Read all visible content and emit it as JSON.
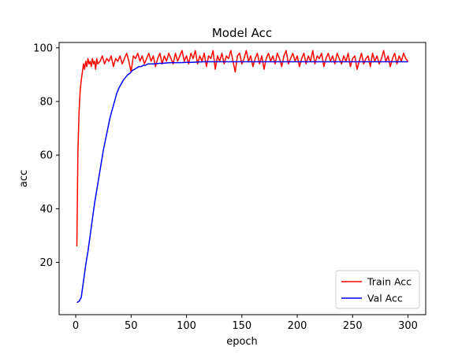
{
  "chart_data": {
    "type": "line",
    "title": "Model Acc",
    "xlabel": "epoch",
    "ylabel": "acc",
    "xlim": [
      -15,
      316
    ],
    "ylim": [
      0.5,
      102
    ],
    "xticks": [
      0,
      50,
      100,
      150,
      200,
      250,
      300
    ],
    "yticks": [
      20,
      40,
      60,
      80,
      100
    ],
    "grid": false,
    "legend_position": "lower-right",
    "series": [
      {
        "name": "Train Acc",
        "color": "#ff0000",
        "x": [
          1,
          2,
          3,
          4,
          5,
          6,
          7,
          8,
          9,
          10,
          11,
          12,
          13,
          14,
          15,
          16,
          17,
          18,
          19,
          20,
          22,
          24,
          26,
          28,
          30,
          32,
          34,
          36,
          38,
          40,
          42,
          44,
          46,
          48,
          50,
          52,
          54,
          56,
          58,
          60,
          62,
          64,
          66,
          68,
          70,
          72,
          74,
          76,
          78,
          80,
          82,
          84,
          86,
          88,
          90,
          92,
          94,
          96,
          98,
          100,
          102,
          104,
          106,
          108,
          110,
          112,
          114,
          116,
          118,
          120,
          122,
          124,
          126,
          128,
          130,
          132,
          134,
          136,
          138,
          140,
          142,
          144,
          146,
          148,
          150,
          152,
          154,
          156,
          158,
          160,
          162,
          164,
          166,
          168,
          170,
          172,
          174,
          176,
          178,
          180,
          182,
          184,
          186,
          188,
          190,
          192,
          194,
          196,
          198,
          200,
          202,
          204,
          206,
          208,
          210,
          212,
          214,
          216,
          218,
          220,
          222,
          224,
          226,
          228,
          230,
          232,
          234,
          236,
          238,
          240,
          242,
          244,
          246,
          248,
          250,
          252,
          254,
          256,
          258,
          260,
          262,
          264,
          266,
          268,
          270,
          272,
          274,
          276,
          278,
          280,
          282,
          284,
          286,
          288,
          290,
          292,
          294,
          296,
          298,
          300
        ],
        "y": [
          26,
          62,
          76,
          84,
          88,
          91,
          94,
          92,
          95,
          93,
          96,
          94,
          95,
          93,
          96,
          94,
          95,
          92,
          96,
          94,
          95,
          97,
          94,
          96,
          95,
          97,
          93,
          96,
          95,
          97,
          94,
          96,
          98,
          95,
          91,
          97,
          96,
          98,
          95,
          97,
          94,
          96,
          98,
          95,
          97,
          93,
          96,
          98,
          94,
          97,
          95,
          98,
          96,
          94,
          98,
          95,
          97,
          99,
          95,
          97,
          94,
          98,
          96,
          99,
          94,
          97,
          95,
          98,
          93,
          97,
          96,
          99,
          92,
          97,
          95,
          98,
          94,
          97,
          96,
          99,
          95,
          91,
          97,
          98,
          94,
          96,
          99,
          95,
          97,
          93,
          96,
          98,
          94,
          97,
          92,
          96,
          98,
          95,
          97,
          94,
          98,
          96,
          93,
          97,
          99,
          94,
          96,
          98,
          95,
          97,
          93,
          96,
          98,
          94,
          97,
          95,
          99,
          94,
          97,
          96,
          98,
          93,
          96,
          98,
          95,
          97,
          94,
          98,
          96,
          94,
          97,
          95,
          98,
          93,
          96,
          97,
          92,
          95,
          98,
          94,
          96,
          97,
          93,
          98,
          95,
          97,
          94,
          96,
          99,
          95,
          97,
          93,
          96,
          98,
          94,
          97,
          95,
          98,
          96,
          95
        ]
      },
      {
        "name": "Val Acc",
        "color": "#0000ff",
        "x": [
          1,
          3,
          5,
          7,
          9,
          11,
          13,
          15,
          17,
          19,
          21,
          23,
          25,
          27,
          29,
          31,
          33,
          35,
          37,
          39,
          41,
          43,
          45,
          47,
          49,
          51,
          53,
          55,
          57,
          59,
          61,
          63,
          65,
          67,
          70,
          75,
          80,
          85,
          90,
          95,
          100,
          105,
          110,
          115,
          120,
          125,
          130,
          135,
          140,
          145,
          150,
          160,
          170,
          180,
          190,
          200,
          210,
          220,
          230,
          240,
          250,
          260,
          270,
          280,
          290,
          300
        ],
        "y": [
          5,
          5.5,
          7,
          13,
          19,
          24,
          30,
          36,
          42,
          47,
          52,
          57,
          62,
          66,
          70,
          74,
          77,
          80,
          83,
          85,
          86.5,
          88,
          89,
          90,
          90.5,
          91.5,
          92,
          92.5,
          93,
          93,
          93.5,
          93.5,
          94,
          94,
          94,
          94.2,
          94.3,
          94.5,
          94.5,
          94.5,
          94.6,
          94.6,
          94.7,
          94.8,
          94.8,
          94.8,
          94.8,
          94.8,
          94.8,
          94.8,
          94.8,
          94.8,
          94.8,
          94.8,
          94.8,
          94.8,
          94.8,
          94.8,
          94.8,
          94.8,
          94.8,
          94.8,
          94.8,
          94.8,
          94.8,
          94.8
        ]
      }
    ]
  }
}
